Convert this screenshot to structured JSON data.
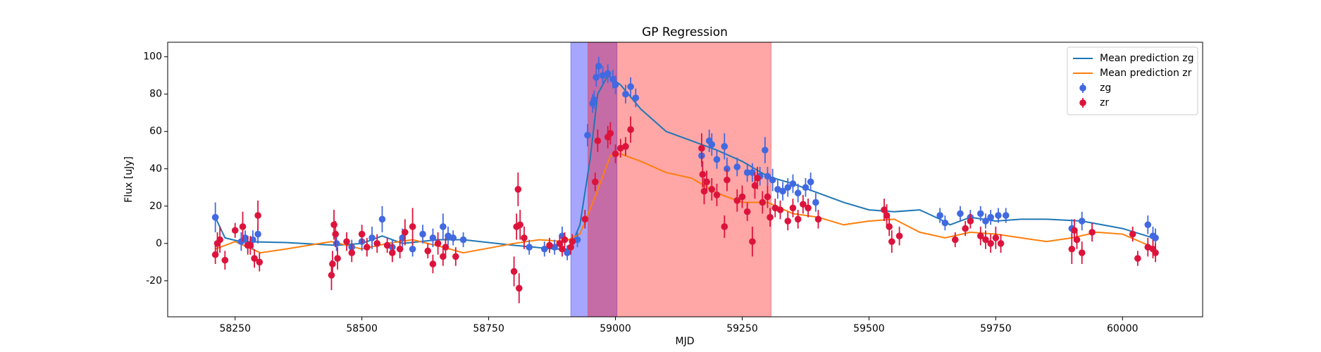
{
  "chart_data": {
    "type": "line",
    "title": "GP Regression",
    "x_label": "MJD",
    "y_label": "Flux [uJy]",
    "xlim": [
      58117,
      60158
    ],
    "ylim": [
      -39.3,
      107.8
    ],
    "xticks": [
      58250,
      58500,
      58750,
      59000,
      59250,
      59500,
      59750,
      60000
    ],
    "yticks": [
      -20,
      0,
      20,
      40,
      60,
      80,
      100
    ],
    "legend": "upper right",
    "grid": false,
    "spans": [
      {
        "start": 58912,
        "end": 59003,
        "color": "#0000ff",
        "alpha": 0.35
      },
      {
        "start": 58946,
        "end": 59307,
        "color": "#ff0000",
        "alpha": 0.35
      }
    ],
    "series": [
      {
        "name": "Mean prediction zg",
        "type": "line",
        "color": "#1f77b4",
        "x": [
          58211,
          58230,
          58260,
          58350,
          58450,
          58500,
          58540,
          58580,
          58650,
          58700,
          58800,
          58880,
          58910,
          58930,
          58950,
          58965,
          58985,
          59010,
          59050,
          59100,
          59150,
          59200,
          59250,
          59300,
          59350,
          59400,
          59450,
          59500,
          59550,
          59600,
          59640,
          59660,
          59700,
          59750,
          59800,
          59850,
          59920,
          60000,
          60060
        ],
        "values": [
          14,
          3,
          1,
          0.5,
          -1,
          0,
          4,
          0,
          2,
          2,
          -1,
          -3,
          -3,
          10,
          45,
          80,
          90,
          85,
          72,
          60,
          55,
          50,
          44,
          36,
          32,
          27,
          22,
          18,
          17,
          18,
          13,
          10,
          14,
          12,
          13,
          13,
          12,
          8,
          3
        ]
      },
      {
        "name": "Mean prediction zr",
        "type": "line",
        "color": "#ff7f0e",
        "x": [
          58211,
          58250,
          58300,
          58350,
          58440,
          58500,
          58550,
          58600,
          58660,
          58700,
          58800,
          58850,
          58900,
          58930,
          58960,
          58990,
          59010,
          59050,
          59100,
          59150,
          59200,
          59250,
          59300,
          59350,
          59400,
          59450,
          59500,
          59550,
          59600,
          59650,
          59700,
          59750,
          59800,
          59850,
          59900,
          59950,
          60000,
          60060
        ],
        "values": [
          -3,
          1,
          -5,
          -3,
          1,
          -3,
          0,
          2,
          -2,
          -5,
          0,
          2,
          1,
          5,
          25,
          47,
          48,
          44,
          38,
          35,
          27,
          22,
          22,
          16,
          14,
          10,
          12,
          13,
          6,
          3,
          6,
          5,
          3,
          1,
          3,
          6,
          5,
          -2
        ]
      },
      {
        "name": "zg",
        "type": "errorbar",
        "color": "#4169e1",
        "x": [
          58211,
          58262,
          58270,
          58275,
          58285,
          58295,
          58450,
          58480,
          58500,
          58520,
          58540,
          58560,
          58580,
          58600,
          58620,
          58640,
          58660,
          58670,
          58680,
          58700,
          58830,
          58860,
          58880,
          58895,
          58905,
          58925,
          58945,
          58955,
          58958,
          58962,
          58967,
          58975,
          58985,
          58995,
          59000,
          59020,
          59030,
          59040,
          59170,
          59185,
          59190,
          59200,
          59215,
          59220,
          59240,
          59260,
          59270,
          59285,
          59295,
          59300,
          59310,
          59320,
          59330,
          59340,
          59350,
          59360,
          59375,
          59385,
          59395,
          59640,
          59650,
          59680,
          59700,
          59720,
          59730,
          59740,
          59755,
          59770,
          59900,
          59920,
          60050,
          60060,
          60065
        ],
        "values": [
          14,
          1,
          3,
          -1,
          2,
          5,
          0,
          -2,
          1,
          3,
          13,
          -2,
          3,
          -3,
          5,
          3,
          9,
          4,
          3,
          2,
          -2,
          -3,
          -2,
          4,
          -5,
          2,
          58,
          75,
          77,
          89,
          95,
          90,
          91,
          88,
          85,
          80,
          84,
          78,
          47,
          55,
          53,
          45,
          52,
          40,
          41,
          38,
          38,
          36,
          50,
          36,
          34,
          29,
          28,
          30,
          32,
          27,
          30,
          33,
          22,
          15,
          11,
          16,
          14,
          16,
          12,
          14,
          15,
          15,
          8,
          12,
          10,
          4,
          3
        ],
        "errors": [
          8,
          5,
          4,
          4,
          5,
          5,
          4,
          4,
          5,
          6,
          7,
          4,
          5,
          4,
          5,
          5,
          7,
          5,
          4,
          4,
          4,
          4,
          4,
          5,
          4,
          4,
          6,
          5,
          5,
          5,
          5,
          5,
          5,
          5,
          5,
          5,
          5,
          5,
          6,
          6,
          6,
          5,
          7,
          6,
          5,
          5,
          5,
          5,
          7,
          5,
          6,
          5,
          5,
          5,
          5,
          5,
          5,
          5,
          5,
          4,
          4,
          4,
          4,
          4,
          4,
          4,
          4,
          4,
          5,
          5,
          5,
          5,
          5
        ]
      },
      {
        "name": "zr",
        "type": "errorbar",
        "color": "#dc143c",
        "x": [
          58211,
          58215,
          58220,
          58230,
          58250,
          58265,
          58275,
          58280,
          58288,
          58295,
          58298,
          58440,
          58442,
          58445,
          58448,
          58452,
          58470,
          58480,
          58500,
          58510,
          58530,
          58550,
          58560,
          58575,
          58585,
          58600,
          58630,
          58640,
          58650,
          58660,
          58665,
          58685,
          58800,
          58805,
          58808,
          58810,
          58812,
          58820,
          58870,
          58890,
          58895,
          58900,
          58912,
          58915,
          58940,
          58960,
          58965,
          58985,
          58990,
          59000,
          59010,
          59020,
          59030,
          59170,
          59172,
          59175,
          59180,
          59190,
          59200,
          59215,
          59220,
          59240,
          59250,
          59260,
          59270,
          59275,
          59280,
          59290,
          59300,
          59305,
          59315,
          59325,
          59340,
          59350,
          59360,
          59370,
          59380,
          59400,
          59530,
          59535,
          59540,
          59545,
          59560,
          59670,
          59690,
          59700,
          59720,
          59730,
          59740,
          59750,
          59760,
          59900,
          59905,
          59910,
          59920,
          59940,
          60020,
          60030,
          60050,
          60060,
          60065
        ],
        "values": [
          -6,
          0,
          2,
          -9,
          7,
          9,
          -1,
          -1,
          -8,
          15,
          -10,
          -17,
          -11,
          10,
          5,
          -8,
          1,
          -5,
          5,
          -2,
          0,
          -1,
          -5,
          -3,
          6,
          9,
          -4,
          -11,
          0,
          -7,
          -2,
          -7,
          -15,
          9,
          29,
          -24,
          10,
          3,
          -1,
          0,
          -3,
          2,
          -2,
          1,
          13,
          33,
          55,
          57,
          59,
          48,
          51,
          52,
          61,
          51,
          37,
          28,
          33,
          29,
          26,
          9,
          34,
          23,
          25,
          17,
          1,
          31,
          35,
          22,
          25,
          14,
          19,
          18,
          12,
          19,
          13,
          21,
          19,
          13,
          18,
          15,
          9,
          1,
          4,
          2,
          8,
          12,
          4,
          2,
          0,
          3,
          0,
          -3,
          7,
          2,
          -5,
          6,
          5,
          -8,
          -2,
          -3,
          -5
        ],
        "errors": [
          5,
          6,
          7,
          5,
          4,
          8,
          5,
          5,
          5,
          8,
          5,
          8,
          7,
          8,
          7,
          6,
          5,
          5,
          5,
          5,
          5,
          4,
          5,
          5,
          7,
          10,
          4,
          5,
          6,
          5,
          5,
          5,
          8,
          7,
          9,
          8,
          8,
          6,
          4,
          4,
          4,
          4,
          4,
          4,
          5,
          5,
          6,
          6,
          6,
          5,
          5,
          5,
          7,
          8,
          7,
          7,
          6,
          6,
          6,
          6,
          6,
          6,
          6,
          5,
          8,
          7,
          6,
          6,
          6,
          5,
          5,
          5,
          5,
          5,
          5,
          5,
          5,
          5,
          6,
          6,
          5,
          6,
          5,
          4,
          4,
          4,
          5,
          5,
          5,
          6,
          5,
          8,
          6,
          5,
          6,
          5,
          4,
          4,
          5,
          5,
          5
        ]
      }
    ]
  }
}
